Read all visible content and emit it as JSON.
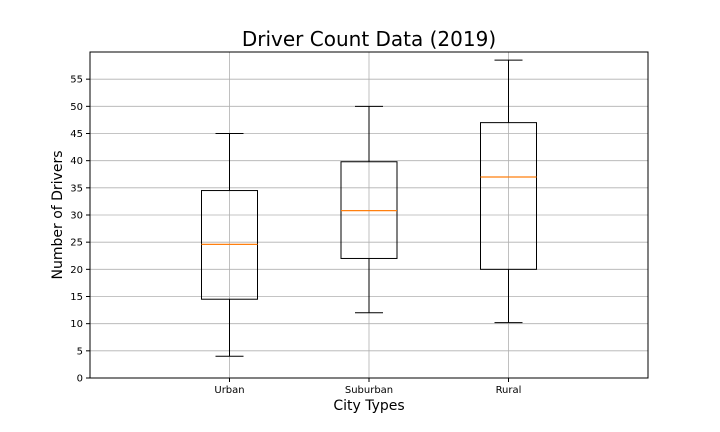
{
  "chart_data": {
    "type": "box",
    "title": "Driver Count Data (2019)",
    "xlabel": "City Types",
    "ylabel": "Number of Drivers",
    "ylim": [
      0,
      60
    ],
    "yticks": [
      0,
      5,
      10,
      15,
      20,
      25,
      30,
      35,
      40,
      45,
      50,
      55
    ],
    "grid": true,
    "categories": [
      "Urban",
      "Suburban",
      "Rural"
    ],
    "series": [
      {
        "category": "Urban",
        "whisker_low": 4,
        "q1": 14.5,
        "median": 24.6,
        "q3": 34.5,
        "whisker_high": 45
      },
      {
        "category": "Suburban",
        "whisker_low": 12,
        "q1": 22,
        "median": 30.8,
        "q3": 39.8,
        "whisker_high": 50
      },
      {
        "category": "Rural",
        "whisker_low": 10.2,
        "q1": 20,
        "median": 37,
        "q3": 47,
        "whisker_high": 58.5
      }
    ],
    "colors": {
      "box": "#000000",
      "median": "#ff7f0e",
      "grid": "#b0b0b0"
    }
  }
}
